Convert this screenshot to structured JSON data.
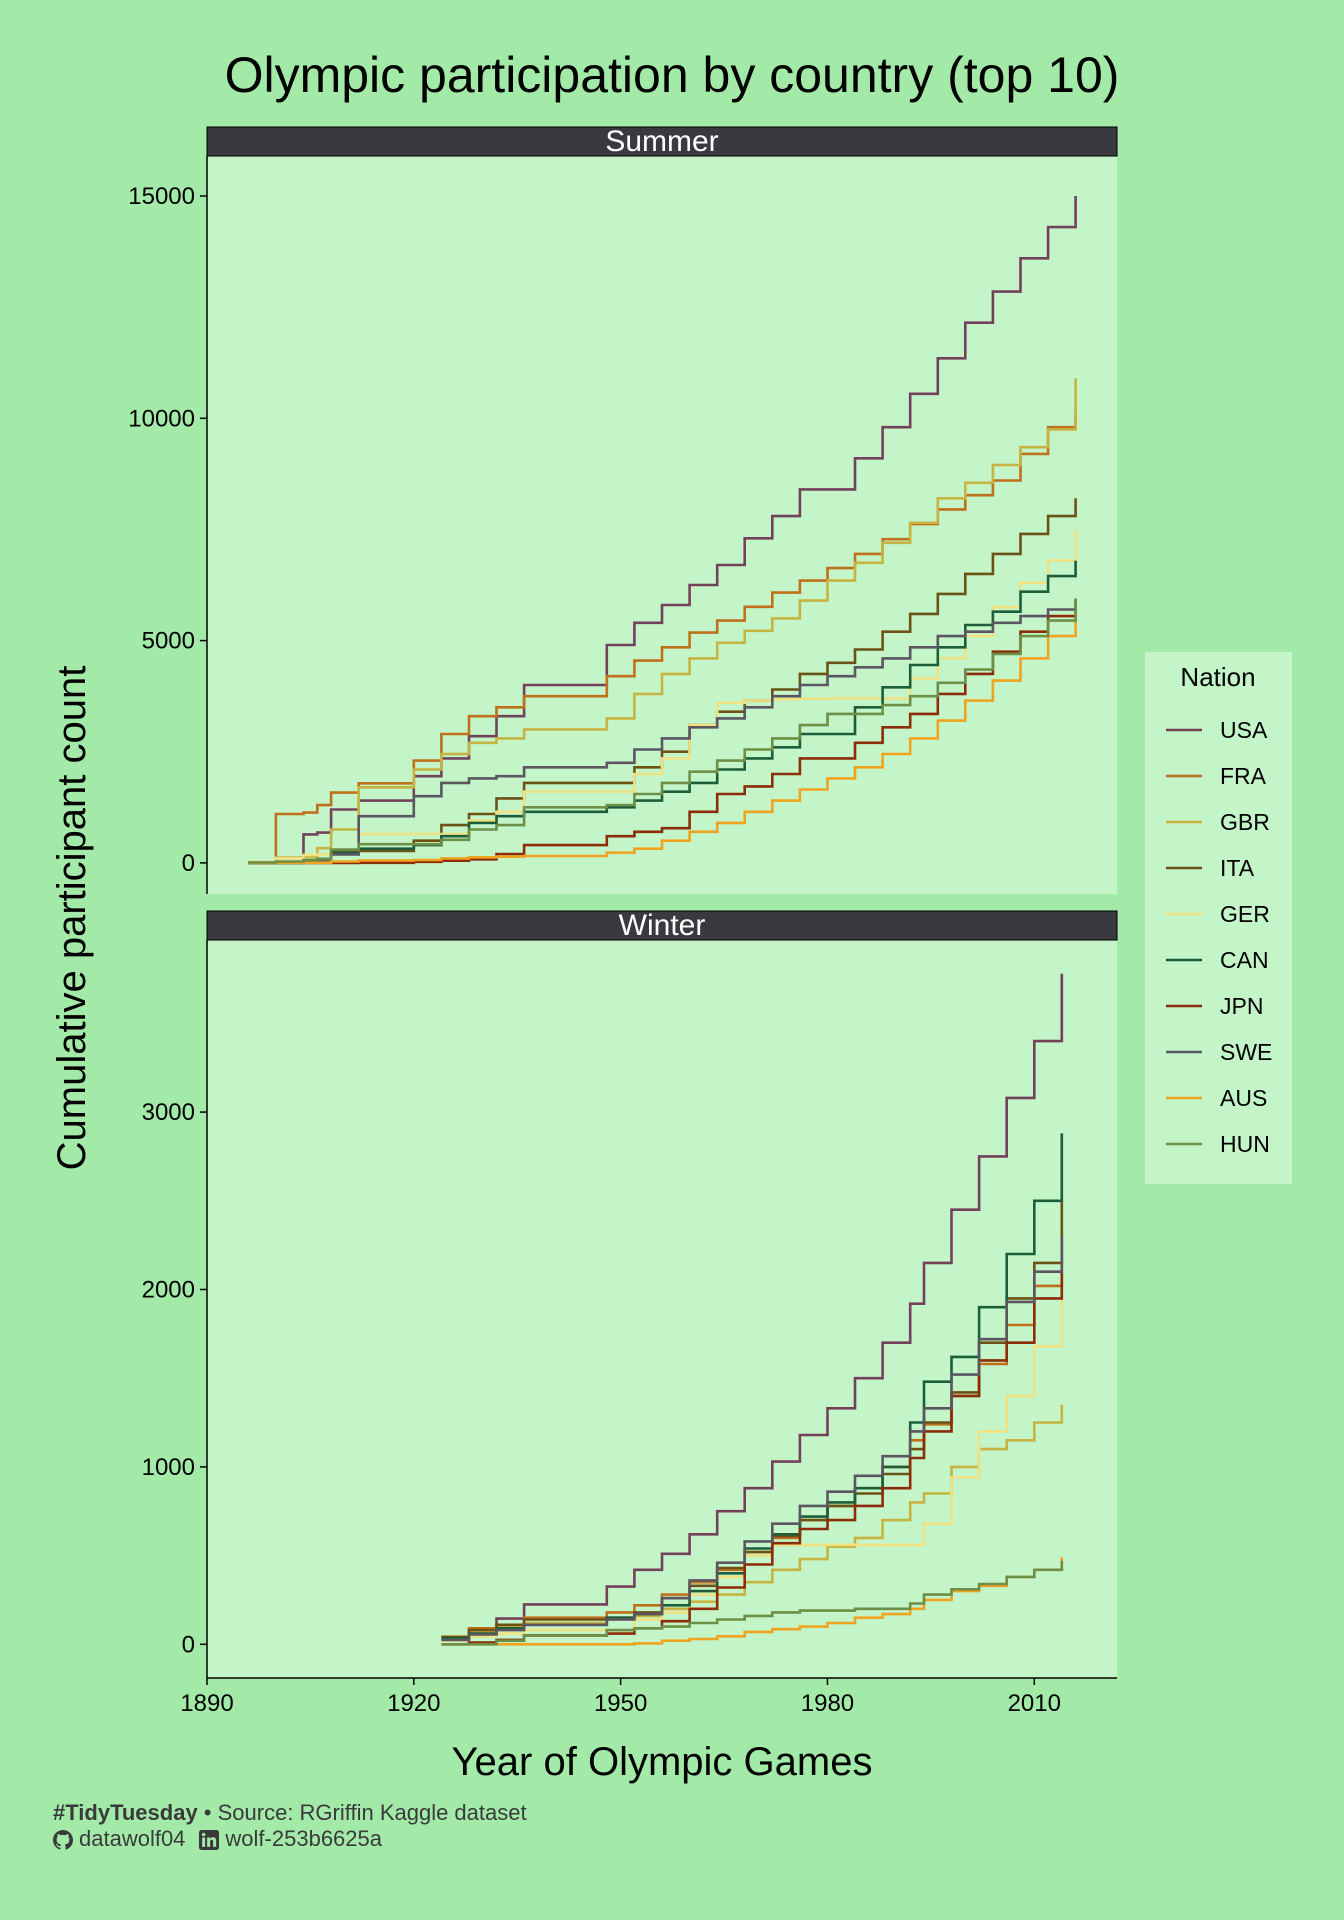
{
  "chart_data": {
    "type": "line",
    "step": true,
    "title": "Olympic participation by country (top 10)",
    "xlabel": "Year of Olympic Games",
    "ylabel": "Cumulative participant count",
    "legend": {
      "title": "Nation",
      "position": "right"
    },
    "xlim": [
      1890,
      2022
    ],
    "x_ticks": [
      1890,
      1920,
      1950,
      1980,
      2010
    ],
    "colors": {
      "USA": "#74415a",
      "FRA": "#c0701a",
      "GBR": "#c7b341",
      "ITA": "#6d5216",
      "GER": "#f0e283",
      "CAN": "#1c5e39",
      "JPN": "#8d2c09",
      "SWE": "#5b5660",
      "AUS": "#f0a31f",
      "HUN": "#6e8f47"
    },
    "facets": [
      {
        "name": "Summer",
        "ylim": [
          -700,
          15900
        ],
        "y_ticks": [
          0,
          5000,
          10000,
          15000
        ],
        "x": [
          1896,
          1900,
          1904,
          1906,
          1908,
          1912,
          1920,
          1924,
          1928,
          1932,
          1936,
          1948,
          1952,
          1956,
          1960,
          1964,
          1968,
          1972,
          1976,
          1980,
          1984,
          1988,
          1992,
          1996,
          2000,
          2004,
          2008,
          2012,
          2016
        ],
        "series": [
          {
            "name": "USA",
            "values": [
              14,
              110,
              640,
              680,
              1200,
              1400,
              1950,
              2350,
              2850,
              3300,
              4000,
              4900,
              5400,
              5800,
              6250,
              6700,
              7300,
              7800,
              8400,
              8400,
              9100,
              9800,
              10550,
              11350,
              12150,
              12850,
              13600,
              14300,
              15000
            ]
          },
          {
            "name": "FRA",
            "values": [
              12,
              1100,
              1130,
              1300,
              1580,
              1790,
              2300,
              2900,
              3300,
              3500,
              3750,
              4200,
              4550,
              4850,
              5180,
              5450,
              5760,
              6080,
              6350,
              6630,
              6950,
              7280,
              7620,
              7950,
              8270,
              8600,
              9200,
              9800,
              10100
            ]
          },
          {
            "name": "GBR",
            "values": [
              15,
              120,
              130,
              330,
              750,
              1700,
              2100,
              2450,
              2700,
              2800,
              3000,
              3250,
              3800,
              4250,
              4600,
              4950,
              5220,
              5500,
              5900,
              6350,
              6750,
              7200,
              7650,
              8200,
              8550,
              8950,
              9350,
              9750,
              10900
            ]
          },
          {
            "name": "ITA",
            "values": [
              1,
              20,
              20,
              70,
              250,
              270,
              500,
              850,
              1100,
              1450,
              1800,
              1800,
              2150,
              2500,
              3100,
              3400,
              3650,
              3900,
              4250,
              4500,
              4800,
              5200,
              5600,
              6050,
              6500,
              6950,
              7400,
              7800,
              8200
            ]
          },
          {
            "name": "GER",
            "values": [
              20,
              100,
              180,
              190,
              230,
              650,
              650,
              650,
              950,
              1150,
              1600,
              1600,
              2000,
              2350,
              3100,
              3600,
              3650,
              3680,
              3690,
              3700,
              3700,
              3700,
              4150,
              4600,
              5100,
              5750,
              6300,
              6800,
              7500
            ]
          },
          {
            "name": "CAN",
            "values": [
              0,
              2,
              60,
              90,
              230,
              320,
              400,
              600,
              900,
              1050,
              1150,
              1250,
              1400,
              1600,
              1800,
              2100,
              2350,
              2600,
              2900,
              2900,
              3500,
              3950,
              4450,
              4850,
              5350,
              5650,
              6100,
              6450,
              6800
            ]
          },
          {
            "name": "JPN",
            "values": [
              0,
              0,
              0,
              0,
              0,
              2,
              25,
              50,
              80,
              200,
              400,
              600,
              700,
              780,
              1150,
              1550,
              1720,
              2000,
              2350,
              2350,
              2700,
              3050,
              3350,
              3800,
              4250,
              4750,
              5200,
              5550,
              5900
            ]
          },
          {
            "name": "SWE",
            "values": [
              2,
              20,
              25,
              50,
              190,
              1050,
              1500,
              1800,
              1900,
              1950,
              2150,
              2250,
              2550,
              2800,
              3050,
              3250,
              3500,
              3750,
              4000,
              4200,
              4400,
              4600,
              4850,
              5100,
              5200,
              5400,
              5550,
              5700,
              5900
            ]
          },
          {
            "name": "AUS",
            "values": [
              1,
              5,
              5,
              5,
              30,
              55,
              65,
              100,
              125,
              140,
              155,
              230,
              320,
              500,
              700,
              900,
              1150,
              1400,
              1650,
              1900,
              2150,
              2450,
              2800,
              3200,
              3650,
              4100,
              4600,
              5100,
              5650
            ]
          },
          {
            "name": "HUN",
            "values": [
              10,
              30,
              55,
              85,
              300,
              420,
              420,
              520,
              750,
              850,
              1250,
              1300,
              1550,
              1800,
              2050,
              2300,
              2550,
              2800,
              3100,
              3350,
              3350,
              3550,
              3750,
              4050,
              4350,
              4700,
              5100,
              5450,
              5950
            ]
          }
        ]
      },
      {
        "name": "Winter",
        "ylim": [
          -190,
          3970
        ],
        "y_ticks": [
          0,
          1000,
          2000,
          3000
        ],
        "x": [
          1924,
          1928,
          1932,
          1936,
          1948,
          1952,
          1956,
          1960,
          1964,
          1968,
          1972,
          1976,
          1980,
          1984,
          1988,
          1992,
          1994,
          1998,
          2002,
          2006,
          2010,
          2014
        ],
        "series": [
          {
            "name": "USA",
            "values": [
              25,
              75,
              145,
              225,
              325,
              420,
              510,
              620,
              750,
              880,
              1030,
              1180,
              1330,
              1500,
              1700,
              1920,
              2150,
              2450,
              2750,
              3080,
              3400,
              3780
            ]
          },
          {
            "name": "FRA",
            "values": [
              45,
              90,
              110,
              150,
              180,
              220,
              280,
              350,
              420,
              520,
              600,
              700,
              780,
              880,
              1000,
              1150,
              1240,
              1400,
              1580,
              1800,
              2020,
              2280
            ]
          },
          {
            "name": "GBR",
            "values": [
              45,
              70,
              100,
              120,
              140,
              160,
              200,
              240,
              280,
              350,
              420,
              480,
              550,
              600,
              700,
              800,
              850,
              1000,
              1100,
              1150,
              1250,
              1350
            ]
          },
          {
            "name": "ITA",
            "values": [
              40,
              80,
              110,
              140,
              150,
              180,
              260,
              330,
              430,
              520,
              610,
              700,
              780,
              850,
              960,
              1100,
              1250,
              1420,
              1700,
              1950,
              2150,
              2500
            ]
          },
          {
            "name": "GER",
            "values": [
              20,
              45,
              60,
              80,
              80,
              140,
              180,
              280,
              380,
              500,
              560,
              560,
              560,
              560,
              560,
              560,
              680,
              940,
              1200,
              1400,
              1680,
              2050
            ]
          },
          {
            "name": "CAN",
            "values": [
              35,
              60,
              90,
              110,
              150,
              170,
              220,
              300,
              400,
              540,
              620,
              720,
              800,
              880,
              1000,
              1250,
              1480,
              1620,
              1900,
              2200,
              2500,
              2880
            ]
          },
          {
            "name": "JPN",
            "values": [
              0,
              10,
              25,
              50,
              60,
              90,
              130,
              200,
              320,
              450,
              570,
              650,
              700,
              780,
              880,
              1050,
              1200,
              1400,
              1600,
              1700,
              1950,
              2100
            ]
          },
          {
            "name": "SWE",
            "values": [
              25,
              55,
              80,
              110,
              140,
              170,
              260,
              360,
              460,
              580,
              680,
              780,
              860,
              950,
              1060,
              1200,
              1330,
              1520,
              1720,
              1930,
              2100,
              2300
            ]
          },
          {
            "name": "AUS",
            "values": [
              0,
              0,
              0,
              0,
              0,
              5,
              20,
              30,
              45,
              70,
              85,
              100,
              120,
              150,
              170,
              200,
              250,
              300,
              330,
              380,
              420,
              490
            ]
          },
          {
            "name": "HUN",
            "values": [
              0,
              0,
              20,
              50,
              80,
              90,
              100,
              120,
              140,
              160,
              180,
              190,
              190,
              200,
              200,
              230,
              280,
              310,
              340,
              380,
              420,
              470
            ]
          }
        ]
      }
    ]
  },
  "caption": {
    "tag": "#TidyTuesday",
    "source": " • Source: RGriffin Kaggle dataset",
    "github": "datawolf04",
    "linkedin": "wolf-253b6625a"
  }
}
